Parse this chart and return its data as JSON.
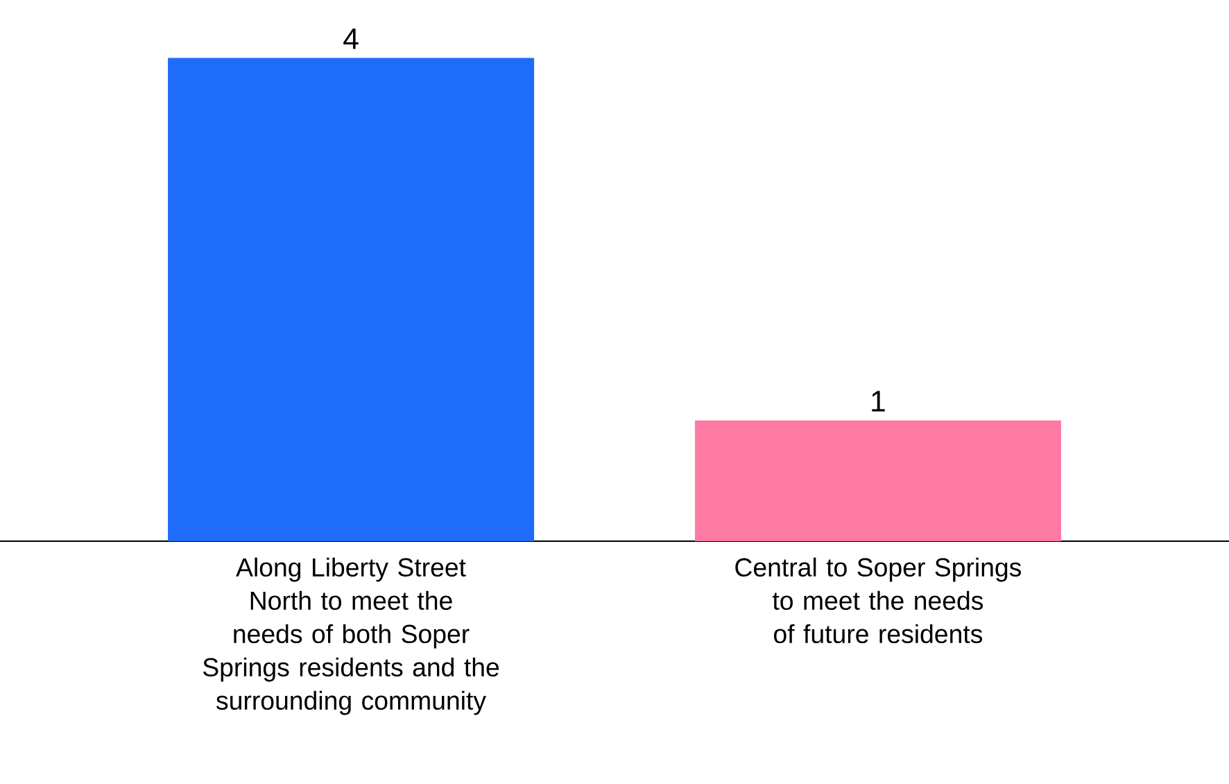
{
  "chart_data": {
    "type": "bar",
    "categories": [
      "Along Liberty Street North to meet the needs of both Soper Springs residents and the surrounding community",
      "Central to Soper Springs to meet the needs of future residents"
    ],
    "values": [
      4,
      1
    ],
    "colors": [
      "#1f6bfa",
      "#ff7aa2"
    ],
    "data_labels": true
  }
}
